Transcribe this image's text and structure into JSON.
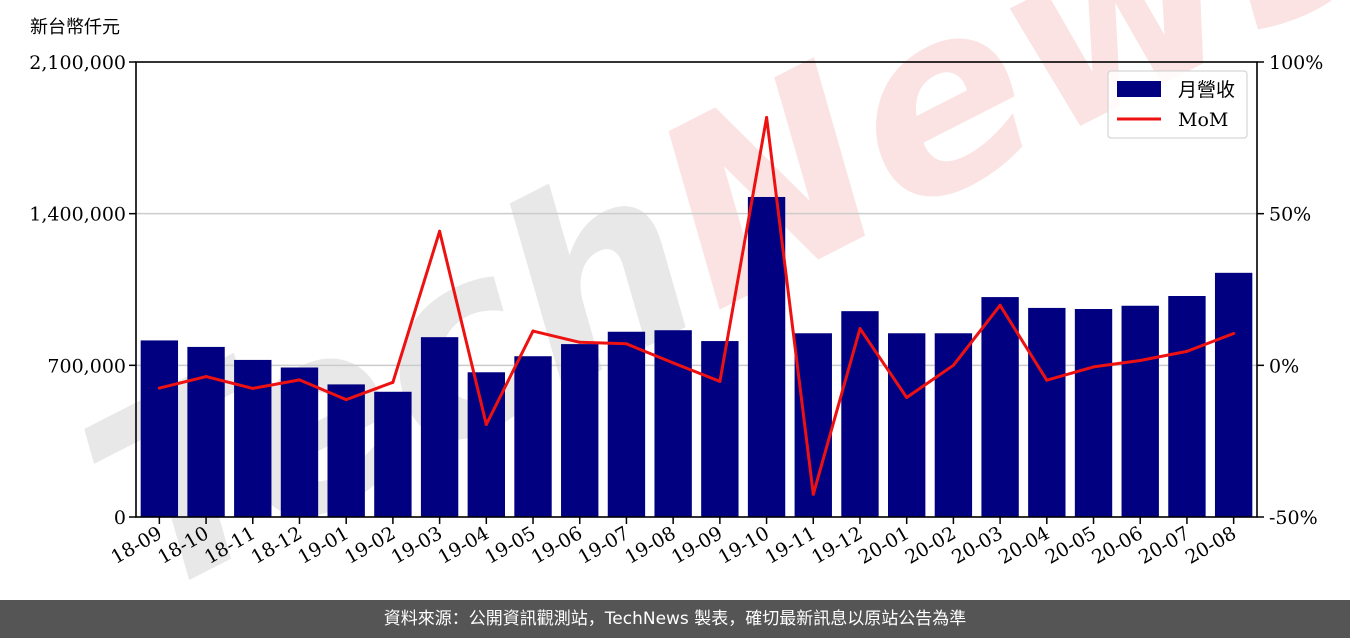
{
  "chart_data": {
    "type": "bar",
    "ylabel": "新台幣仟元",
    "categories": [
      "18-09",
      "18-10",
      "18-11",
      "18-12",
      "19-01",
      "19-02",
      "19-03",
      "19-04",
      "19-05",
      "19-06",
      "19-07",
      "19-08",
      "19-09",
      "19-10",
      "19-11",
      "19-12",
      "20-01",
      "20-02",
      "20-03",
      "20-04",
      "20-05",
      "20-06",
      "20-07",
      "20-08"
    ],
    "series": [
      {
        "name": "月營收",
        "type": "bar",
        "axis": "left",
        "color": "#000080",
        "values": [
          815000,
          785000,
          725000,
          690000,
          612000,
          578000,
          830000,
          668000,
          742000,
          798000,
          855000,
          862000,
          812000,
          1477000,
          848000,
          950000,
          848000,
          848000,
          1015000,
          965000,
          960000,
          975000,
          1020000,
          1127000
        ]
      },
      {
        "name": "MoM",
        "type": "line",
        "axis": "right",
        "color": "#ee1111",
        "values": [
          -7.5,
          -3.7,
          -7.6,
          -4.8,
          -11.3,
          -5.6,
          44.2,
          -19.5,
          11.3,
          7.6,
          7.1,
          0.8,
          -5.3,
          81.7,
          -42.5,
          12.1,
          -10.6,
          0.0,
          19.8,
          -4.9,
          -0.5,
          1.6,
          4.6,
          10.5
        ]
      }
    ],
    "left_axis": {
      "min": 0,
      "max": 2100000,
      "ticks": [
        0,
        700000,
        1400000,
        2100000
      ],
      "tick_labels": [
        "0",
        "700,000",
        "1,400,000",
        "2,100,000"
      ]
    },
    "right_axis": {
      "min": -50,
      "max": 100,
      "ticks": [
        -50,
        0,
        50,
        100
      ],
      "tick_labels": [
        "-50%",
        "0%",
        "50%",
        "100%"
      ]
    },
    "grid": "horizontal",
    "legend_position": "top-right"
  },
  "watermark": "TechNews",
  "footer": {
    "text": "資料來源：公開資訊觀測站，TechNews 製表，確切最新訊息以原站公告為準"
  }
}
